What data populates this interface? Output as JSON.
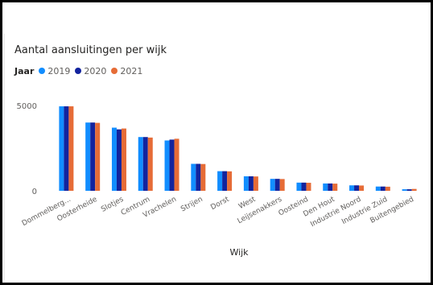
{
  "chart_data": {
    "type": "bar",
    "title": "Aantal aansluitingen per wijk",
    "legend_title": "Jaar",
    "legend_position": "top-left",
    "xlabel": "Wijk",
    "ylabel": "",
    "ylim": [
      0,
      5500
    ],
    "y_ticks": [
      0,
      5000
    ],
    "y_tick_labels": [
      "0",
      "5000"
    ],
    "grid": false,
    "categories": [
      "Dommelberg...",
      "Oosterheide",
      "Slotjes",
      "Centrum",
      "Vrachelen",
      "Strijen",
      "Dorst",
      "West",
      "Leijsenakkers",
      "Oosteind",
      "Den Hout",
      "Industrie Noord",
      "Industrie Zuid",
      "Buitengebied"
    ],
    "series": [
      {
        "name": "2019",
        "color": "#118DFF",
        "values": [
          4950,
          4000,
          3700,
          3150,
          2950,
          1580,
          1150,
          850,
          700,
          480,
          430,
          320,
          250,
          90
        ]
      },
      {
        "name": "2020",
        "color": "#12239E",
        "values": [
          4950,
          4000,
          3600,
          3150,
          3000,
          1580,
          1150,
          850,
          700,
          480,
          430,
          320,
          250,
          90
        ]
      },
      {
        "name": "2021",
        "color": "#E66C37",
        "values": [
          4950,
          3980,
          3650,
          3120,
          3050,
          1570,
          1140,
          840,
          690,
          470,
          420,
          310,
          240,
          110
        ]
      }
    ]
  }
}
